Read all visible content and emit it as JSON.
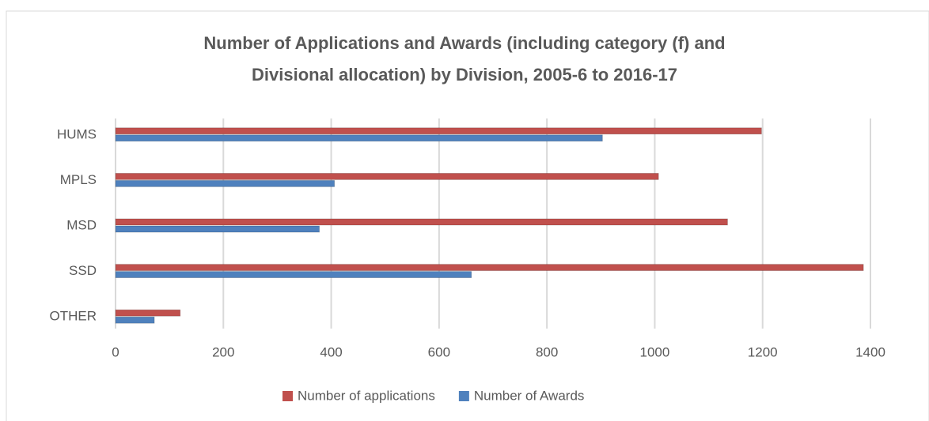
{
  "chart_data": {
    "type": "hbar",
    "title": [
      "Number of Applications and Awards (including category (f) and",
      "Divisional allocation) by Division, 2005-6 to 2016-17"
    ],
    "categories": [
      "HUMS",
      "MPLS",
      "MSD",
      "SSD",
      "OTHER"
    ],
    "series": [
      {
        "name": "Number of applications",
        "color": "#c0504d",
        "values": [
          1198,
          1007,
          1135,
          1387,
          120
        ]
      },
      {
        "name": "Number of Awards",
        "color": "#4f81bd",
        "values": [
          903,
          406,
          378,
          660,
          72
        ]
      }
    ],
    "xlim": [
      0,
      1400
    ],
    "xticks": [
      0,
      200,
      400,
      600,
      800,
      1000,
      1200,
      1400
    ],
    "grid": true,
    "legend": "bottom"
  }
}
